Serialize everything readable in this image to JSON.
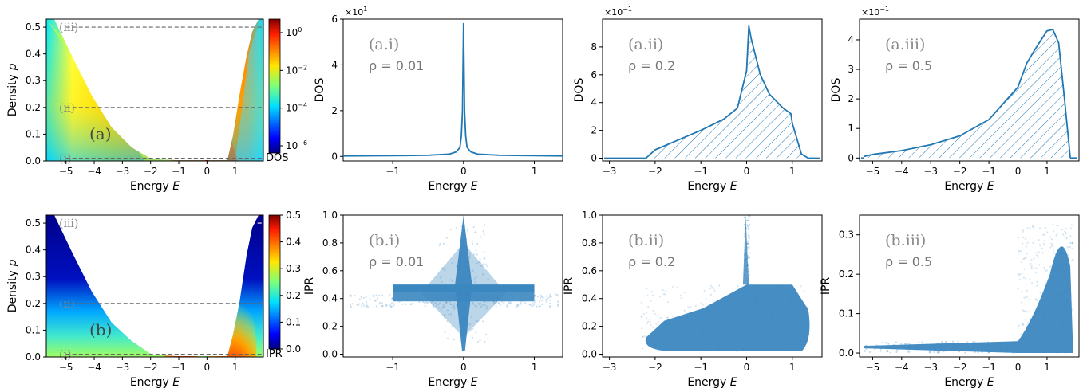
{
  "chart_data": [
    {
      "id": "a",
      "type": "heatmap",
      "panel_label": "(a)",
      "xlabel": "Energy E",
      "ylabel": "Density ρ",
      "xlim": [
        -5.7,
        2.0
      ],
      "ylim": [
        0.0,
        0.53
      ],
      "xticks": [
        -5,
        -4,
        -3,
        -2,
        -1,
        0,
        1
      ],
      "yticks": [
        0.0,
        0.1,
        0.2,
        0.3,
        0.4,
        0.5
      ],
      "colorbar": {
        "title": "DOS",
        "scale": "log",
        "ticks": [
          "10^0",
          "10^-2",
          "10^-4",
          "10^-6"
        ]
      },
      "cuts": [
        {
          "label": "(i)",
          "rho": 0.01
        },
        {
          "label": "(ii)",
          "rho": 0.2
        },
        {
          "label": "(iii)",
          "rho": 0.5
        }
      ]
    },
    {
      "id": "a.i",
      "type": "line",
      "panel_label": "(a.i)",
      "annotation": "ρ = 0.01",
      "xlabel": "Energy E",
      "ylabel": "DOS",
      "sci_multiplier": "×10^1",
      "xlim": [
        -1.7,
        1.4
      ],
      "ylim": [
        -0.2,
        6.0
      ],
      "xticks": [
        -1,
        0,
        1
      ],
      "yticks": [
        0,
        2,
        4,
        6
      ],
      "hatched": false,
      "series": [
        {
          "x": [
            -1.7,
            -1.0,
            -0.5,
            -0.2,
            -0.1,
            -0.05,
            -0.03,
            -0.015,
            0.0,
            0.015,
            0.03,
            0.05,
            0.1,
            0.2,
            0.5,
            1.0,
            1.4
          ],
          "y": [
            0.02,
            0.03,
            0.05,
            0.1,
            0.2,
            0.4,
            0.9,
            2.0,
            5.8,
            2.0,
            0.9,
            0.4,
            0.2,
            0.1,
            0.05,
            0.03,
            0.02
          ]
        }
      ]
    },
    {
      "id": "a.ii",
      "type": "area",
      "panel_label": "(a.ii)",
      "annotation": "ρ = 0.2",
      "xlabel": "Energy E",
      "ylabel": "DOS",
      "sci_multiplier": "×10^-1",
      "xlim": [
        -3.15,
        1.65
      ],
      "ylim": [
        -0.2,
        10.0
      ],
      "xticks": [
        -3,
        -2,
        -1,
        0,
        1
      ],
      "yticks": [
        0,
        2,
        4,
        6,
        8
      ],
      "hatched": true,
      "series": [
        {
          "x": [
            -2.2,
            -2.0,
            -1.5,
            -1.0,
            -0.5,
            -0.2,
            0.0,
            0.05,
            0.1,
            0.3,
            0.5,
            0.8,
            0.97,
            1.0,
            1.2,
            1.35
          ],
          "y": [
            0.0,
            0.6,
            1.3,
            2.0,
            2.8,
            3.6,
            6.3,
            9.5,
            8.6,
            6.0,
            4.6,
            3.6,
            3.2,
            2.5,
            0.3,
            0.0
          ]
        }
      ]
    },
    {
      "id": "a.iii",
      "type": "area",
      "panel_label": "(a.iii)",
      "annotation": "ρ = 0.5",
      "xlabel": "Energy E",
      "ylabel": "DOS",
      "sci_multiplier": "×10^-1",
      "xlim": [
        -5.45,
        2.1
      ],
      "ylim": [
        -0.1,
        4.7
      ],
      "xticks": [
        -5,
        -4,
        -3,
        -2,
        -1,
        0,
        1
      ],
      "yticks": [
        0,
        1,
        2,
        3,
        4
      ],
      "hatched": true,
      "series": [
        {
          "x": [
            -5.3,
            -5.0,
            -4.0,
            -3.0,
            -2.0,
            -1.0,
            0.0,
            0.3,
            0.6,
            1.0,
            1.2,
            1.4,
            1.6,
            1.8
          ],
          "y": [
            0.05,
            0.12,
            0.25,
            0.45,
            0.75,
            1.3,
            2.4,
            3.2,
            3.7,
            4.3,
            4.35,
            3.9,
            2.0,
            0.0
          ]
        }
      ]
    },
    {
      "id": "b",
      "type": "heatmap",
      "panel_label": "(b)",
      "xlabel": "Energy E",
      "ylabel": "Density ρ",
      "xlim": [
        -5.7,
        2.0
      ],
      "ylim": [
        0.0,
        0.53
      ],
      "xticks": [
        -5,
        -4,
        -3,
        -2,
        -1,
        0,
        1
      ],
      "yticks": [
        0.0,
        0.1,
        0.2,
        0.3,
        0.4,
        0.5
      ],
      "colorbar": {
        "title": "IPR",
        "scale": "linear",
        "ticks": [
          "0.0",
          "0.1",
          "0.2",
          "0.3",
          "0.4",
          "0.5"
        ]
      },
      "cuts": [
        {
          "label": "(i)",
          "rho": 0.01
        },
        {
          "label": "(ii)",
          "rho": 0.2
        },
        {
          "label": "(iii)",
          "rho": 0.5
        }
      ]
    },
    {
      "id": "b.i",
      "type": "scatter",
      "panel_label": "(b.i)",
      "annotation": "ρ = 0.01",
      "xlabel": "Energy E",
      "ylabel": "IPR",
      "xlim": [
        -1.7,
        1.4
      ],
      "ylim": [
        -0.02,
        1.0
      ],
      "xticks": [
        -1,
        0,
        1
      ],
      "yticks": [
        0.0,
        0.2,
        0.4,
        0.6,
        0.8,
        1.0
      ],
      "regions": [
        {
          "desc": "horizontal band",
          "x": [
            -1.0,
            1.0
          ],
          "y": [
            0.38,
            0.5
          ]
        },
        {
          "desc": "vertical spike",
          "x": [
            -0.03,
            0.03
          ],
          "y": [
            0.02,
            1.0
          ]
        },
        {
          "desc": "wings",
          "x": [
            -1.6,
            1.35
          ],
          "y": [
            0.33,
            0.43
          ]
        }
      ]
    },
    {
      "id": "b.ii",
      "type": "scatter",
      "panel_label": "(b.ii)",
      "annotation": "ρ = 0.2",
      "xlabel": "Energy E",
      "ylabel": "IPR",
      "xlim": [
        -3.15,
        1.65
      ],
      "ylim": [
        -0.02,
        1.0
      ],
      "xticks": [
        -3,
        -2,
        -1,
        0,
        1
      ],
      "yticks": [
        0.0,
        0.2,
        0.4,
        0.6,
        0.8,
        1.0
      ],
      "regions": [
        {
          "desc": "main cloud",
          "x": [
            -2.3,
            1.4
          ],
          "y": [
            0.02,
            0.5
          ]
        },
        {
          "desc": "spike at E=0",
          "x": [
            -0.02,
            0.04
          ],
          "y": [
            0.3,
            1.0
          ]
        }
      ]
    },
    {
      "id": "b.iii",
      "type": "scatter",
      "panel_label": "(b.iii)",
      "annotation": "ρ = 0.5",
      "xlabel": "Energy E",
      "ylabel": "IPR",
      "xlim": [
        -5.45,
        2.1
      ],
      "ylim": [
        -0.01,
        0.35
      ],
      "xticks": [
        -5,
        -4,
        -3,
        -2,
        -1,
        0,
        1
      ],
      "yticks": [
        0.0,
        0.1,
        0.2,
        0.3
      ],
      "regions": [
        {
          "desc": "low tail",
          "x": [
            -5.3,
            0.0
          ],
          "y": [
            0.0,
            0.02
          ]
        },
        {
          "desc": "rising cloud",
          "x": [
            0.0,
            1.9
          ],
          "y": [
            0.0,
            0.33
          ]
        }
      ]
    }
  ],
  "colors": {
    "line": "#1f77b4",
    "scatter": "#3b87c0",
    "cut_line": "#666666",
    "cut_line_dark": "#ffffff"
  }
}
